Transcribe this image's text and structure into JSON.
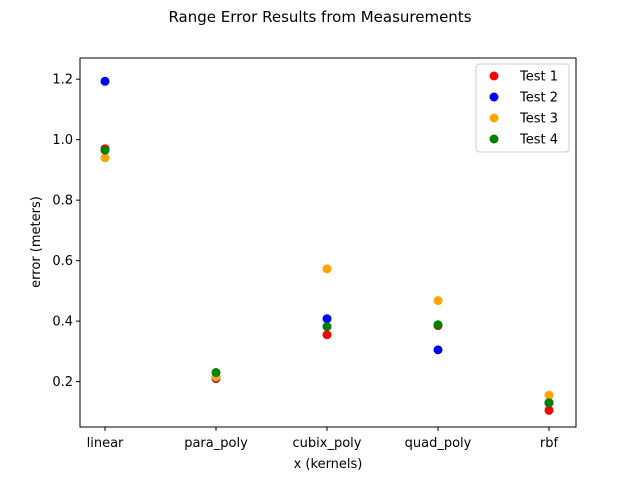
{
  "chart_data": {
    "type": "scatter",
    "title": "Range Error Results from Measurements",
    "xlabel": "x (kernels)",
    "ylabel": "error (meters)",
    "categories": [
      "linear",
      "para_poly",
      "cubix_poly",
      "quad_poly",
      "rbf"
    ],
    "ylim": [
      0.05,
      1.27
    ],
    "yticks": [
      0.2,
      0.4,
      0.6,
      0.8,
      1.0,
      1.2
    ],
    "ytick_labels": [
      "0.2",
      "0.4",
      "0.6",
      "0.8",
      "1.0",
      "1.2"
    ],
    "grid": false,
    "legend_position": "top-right",
    "series": [
      {
        "name": "Test 1",
        "color": "#ff0000",
        "values": [
          0.97,
          0.21,
          0.355,
          0.385,
          0.105
        ]
      },
      {
        "name": "Test 2",
        "color": "#0000ff",
        "values": [
          1.193,
          0.213,
          0.408,
          0.305,
          0.13
        ]
      },
      {
        "name": "Test 3",
        "color": "#ffa500",
        "values": [
          0.94,
          0.215,
          0.573,
          0.468,
          0.155
        ]
      },
      {
        "name": "Test 4",
        "color": "#008000",
        "values": [
          0.965,
          0.23,
          0.382,
          0.388,
          0.13
        ]
      }
    ]
  }
}
